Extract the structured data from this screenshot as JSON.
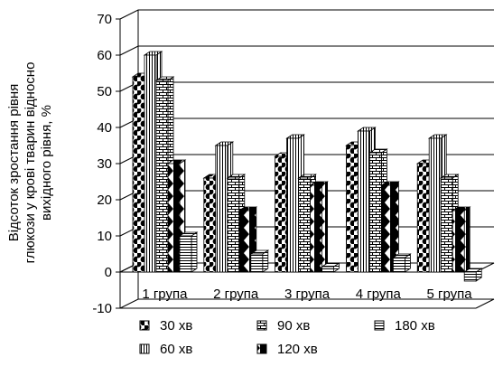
{
  "chart_data": {
    "type": "bar",
    "categories": [
      "1 група",
      "2 група",
      "3 група",
      "4 група",
      "5 група"
    ],
    "series": [
      {
        "name": "30 хв",
        "values": [
          54,
          26,
          32,
          35,
          30
        ]
      },
      {
        "name": "60 хв",
        "values": [
          60,
          35,
          37,
          39,
          37
        ]
      },
      {
        "name": "90 хв",
        "values": [
          53,
          26,
          26,
          33,
          26
        ]
      },
      {
        "name": "120 хв",
        "values": [
          30,
          17,
          24,
          24,
          17
        ]
      },
      {
        "name": "180 хв",
        "values": [
          10,
          5,
          1.5,
          4,
          -2.5
        ]
      }
    ],
    "ylabel": [
      "Відсоток зростання рівня",
      "глюкози у крові тварин відносно",
      "вихідного рівня, %"
    ],
    "ylim": [
      -10,
      70
    ],
    "yticks": [
      -10,
      0,
      10,
      20,
      30,
      40,
      50,
      60,
      70
    ],
    "grid": true,
    "legend_position": "bottom"
  }
}
